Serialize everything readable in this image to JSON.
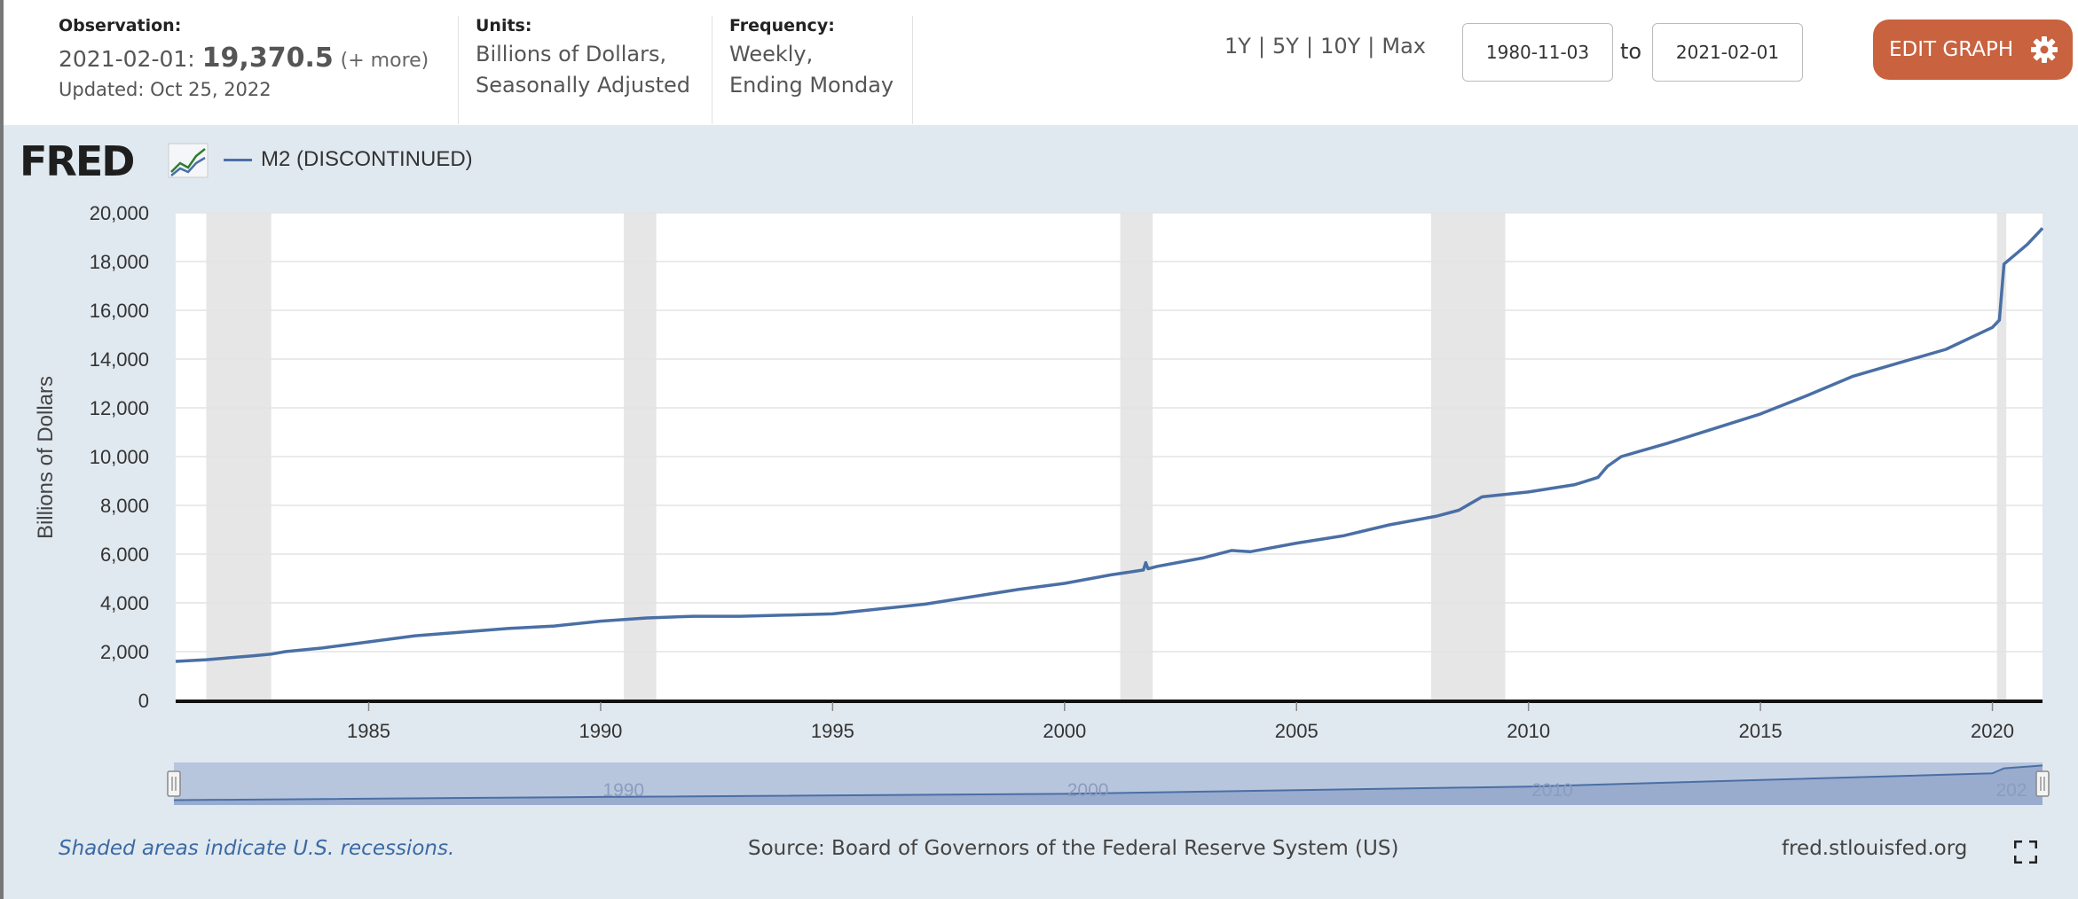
{
  "header": {
    "observation": {
      "label": "Observation:",
      "date": "2021-02-01:",
      "value": "19,370.5",
      "more": "(+ more)",
      "updated": "Updated: Oct 25, 2022"
    },
    "units": {
      "label": "Units:",
      "line1": "Billions of Dollars,",
      "line2": "Seasonally Adjusted"
    },
    "frequency": {
      "label": "Frequency:",
      "line1": "Weekly,",
      "line2": "Ending Monday"
    },
    "range_links": [
      "1Y",
      "5Y",
      "10Y",
      "Max"
    ],
    "range_sep": "|",
    "start_date": "1980-11-03",
    "to_label": "to",
    "end_date": "2021-02-01",
    "edit_button": "EDIT GRAPH",
    "edit_icon": "gear-icon"
  },
  "brand": {
    "logo_text": "FRED"
  },
  "footer": {
    "recession_note": "Shaded areas indicate U.S. recessions.",
    "source": "Source: Board of Governors of the Federal Reserve System (US)",
    "site": "fred.stlouisfed.org",
    "fullscreen_icon": "fullscreen-icon"
  },
  "colors": {
    "line": "#4a6fa5",
    "recession": "#e6e6e6",
    "panel_bg": "#e1e9f0",
    "edit_button": "#c8623f"
  },
  "chart_data": {
    "type": "line",
    "title": "",
    "xlabel": "",
    "ylabel": "Billions of Dollars",
    "xlim": [
      1980.84,
      2021.08
    ],
    "ylim": [
      0,
      20000
    ],
    "yticks": [
      0,
      2000,
      4000,
      6000,
      8000,
      10000,
      12000,
      14000,
      16000,
      18000,
      20000
    ],
    "ytick_labels": [
      "0",
      "2,000",
      "4,000",
      "6,000",
      "8,000",
      "10,000",
      "12,000",
      "14,000",
      "16,000",
      "18,000",
      "20,000"
    ],
    "xticks": [
      1985,
      1990,
      1995,
      2000,
      2005,
      2010,
      2015,
      2020
    ],
    "xtick_labels": [
      "1985",
      "1990",
      "1995",
      "2000",
      "2005",
      "2010",
      "2015",
      "2020"
    ],
    "navigator_labels": [
      "1990",
      "2000",
      "2010",
      "202"
    ],
    "grid": true,
    "legend_position": "top-left",
    "recessions": [
      [
        1981.5,
        1982.9
      ],
      [
        1990.5,
        1991.2
      ],
      [
        2001.2,
        2001.9
      ],
      [
        2007.9,
        2009.5
      ],
      [
        2020.1,
        2020.3
      ]
    ],
    "series": [
      {
        "name": "M2 (DISCONTINUED)",
        "x": [
          1980.84,
          1981.5,
          1982.0,
          1982.5,
          1982.9,
          1983.2,
          1984.0,
          1985.0,
          1986.0,
          1987.0,
          1988.0,
          1989.0,
          1990.0,
          1991.0,
          1992.0,
          1993.0,
          1994.0,
          1995.0,
          1996.0,
          1997.0,
          1998.0,
          1999.0,
          2000.0,
          2001.0,
          2001.7,
          2001.75,
          2001.8,
          2002.0,
          2003.0,
          2003.6,
          2004.0,
          2005.0,
          2006.0,
          2007.0,
          2008.0,
          2008.5,
          2009.0,
          2010.0,
          2011.0,
          2011.5,
          2011.7,
          2012.0,
          2013.0,
          2014.0,
          2015.0,
          2016.0,
          2017.0,
          2018.0,
          2019.0,
          2020.0,
          2020.15,
          2020.25,
          2020.5,
          2020.75,
          2021.0,
          2021.08
        ],
        "y": [
          1600,
          1670,
          1750,
          1830,
          1900,
          2000,
          2150,
          2400,
          2650,
          2800,
          2950,
          3050,
          3250,
          3380,
          3450,
          3450,
          3500,
          3550,
          3750,
          3950,
          4250,
          4550,
          4800,
          5150,
          5350,
          5650,
          5400,
          5500,
          5850,
          6150,
          6100,
          6450,
          6750,
          7200,
          7550,
          7800,
          8350,
          8550,
          8850,
          9150,
          9600,
          10000,
          10550,
          11150,
          11750,
          12500,
          13300,
          13850,
          14400,
          15300,
          15600,
          17900,
          18300,
          18700,
          19200,
          19370.5
        ]
      }
    ],
    "navigator": {
      "x": [
        1980.84,
        1990.0,
        2000.0,
        2010.0,
        2020.0,
        2020.25,
        2021.08
      ],
      "y": [
        1600,
        3250,
        4800,
        8550,
        15300,
        17900,
        19370.5
      ]
    }
  }
}
